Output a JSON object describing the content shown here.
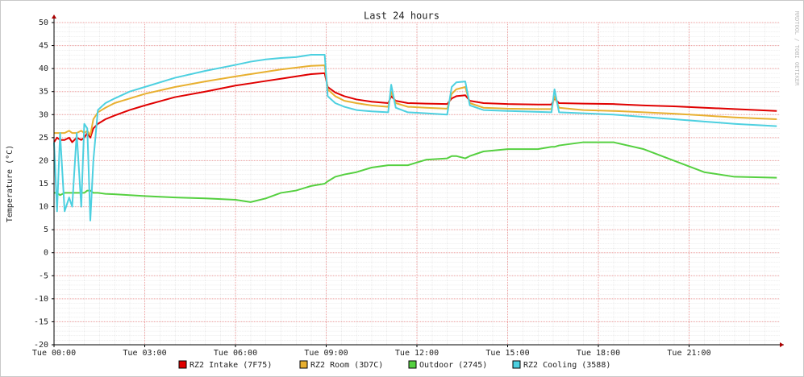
{
  "chart_data": {
    "type": "line",
    "title": "Last 24 hours",
    "y_label": "Temperature (°C)",
    "watermark": "RRDTOOL / TOBI OETIKER",
    "xlim": [
      0,
      24
    ],
    "xticks": [
      {
        "value": 0,
        "label": "Tue 00:00"
      },
      {
        "value": 3,
        "label": "Tue 03:00"
      },
      {
        "value": 6,
        "label": "Tue 06:00"
      },
      {
        "value": 9,
        "label": "Tue 09:00"
      },
      {
        "value": 12,
        "label": "Tue 12:00"
      },
      {
        "value": 15,
        "label": "Tue 15:00"
      },
      {
        "value": 18,
        "label": "Tue 18:00"
      },
      {
        "value": 21,
        "label": "Tue 21:00"
      }
    ],
    "ylim": [
      -20,
      50
    ],
    "yticks": [
      -20,
      -15,
      -10,
      -5,
      0,
      5,
      10,
      15,
      20,
      25,
      30,
      35,
      40,
      45,
      50
    ],
    "grid": true,
    "x": [
      0,
      0.1,
      0.2,
      0.35,
      0.5,
      0.6,
      0.75,
      0.9,
      1.0,
      1.1,
      1.2,
      1.3,
      1.45,
      1.7,
      2.0,
      2.5,
      3,
      4,
      5,
      6,
      6.5,
      7,
      7.5,
      8,
      8.5,
      8.95,
      9.05,
      9.3,
      9.6,
      10,
      10.5,
      11.05,
      11.15,
      11.3,
      11.7,
      12.3,
      13.0,
      13.15,
      13.3,
      13.6,
      13.75,
      14.2,
      15,
      16,
      16.45,
      16.55,
      16.7,
      17.5,
      18.5,
      19.5,
      20.5,
      21.5,
      22.5,
      23.9
    ],
    "series": [
      {
        "name": "RZ2 Intake (7F75)",
        "color": "#e00000",
        "values": [
          24,
          25,
          24.5,
          24.5,
          25,
          24,
          25,
          24.5,
          25,
          26,
          25,
          27,
          28,
          29,
          29.8,
          31,
          32,
          33.8,
          35,
          36.3,
          36.8,
          37.3,
          37.8,
          38.3,
          38.8,
          39,
          36,
          34.8,
          34,
          33.3,
          32.8,
          32.5,
          34,
          33,
          32.5,
          32.4,
          32.3,
          33.5,
          34,
          34.2,
          33,
          32.5,
          32.3,
          32.2,
          32.2,
          33.5,
          32.5,
          32.4,
          32.3,
          32,
          31.8,
          31.5,
          31.2,
          30.8
        ]
      },
      {
        "name": "RZ2 Room (3D7C)",
        "color": "#e8b030",
        "values": [
          26,
          26,
          26,
          26,
          26.5,
          26,
          26,
          26.5,
          26,
          26.5,
          25.5,
          29,
          30.5,
          31.5,
          32.5,
          33.5,
          34.5,
          36,
          37.2,
          38.3,
          38.8,
          39.3,
          39.8,
          40.2,
          40.6,
          40.7,
          35.5,
          34,
          33,
          32.5,
          32,
          31.7,
          35,
          32.5,
          31.7,
          31.5,
          31.3,
          34.5,
          35.5,
          36,
          32.5,
          31.5,
          31.3,
          31.2,
          31.2,
          34,
          31.5,
          31,
          30.8,
          30.5,
          30.2,
          29.8,
          29.4,
          29
        ]
      },
      {
        "name": "Outdoor (2745)",
        "color": "#55d040",
        "values": [
          13,
          13,
          12.5,
          13,
          13,
          13,
          13,
          13,
          13,
          13.5,
          13.5,
          13,
          13,
          12.8,
          12.7,
          12.5,
          12.3,
          12,
          11.8,
          11.5,
          11,
          11.8,
          13,
          13.5,
          14.5,
          15,
          15.5,
          16.5,
          17,
          17.5,
          18.5,
          19,
          19,
          19,
          19,
          20.2,
          20.5,
          21,
          21,
          20.5,
          21,
          22,
          22.5,
          22.5,
          23,
          23,
          23.3,
          24,
          24,
          22.5,
          20,
          17.5,
          16.5,
          16.3
        ]
      },
      {
        "name": "RZ2 Cooling (3588)",
        "color": "#4dd0e0",
        "values": [
          24,
          9,
          26,
          9,
          12,
          10,
          26,
          10,
          28,
          27,
          7,
          20,
          31,
          32.5,
          33.5,
          35,
          36,
          38,
          39.5,
          40.8,
          41.5,
          42,
          42.3,
          42.5,
          43,
          43,
          34,
          32.5,
          31.7,
          31,
          30.7,
          30.5,
          36.5,
          31.5,
          30.5,
          30.3,
          30,
          36,
          37,
          37.2,
          32,
          31,
          30.8,
          30.6,
          30.5,
          35.5,
          30.5,
          30.3,
          30,
          29.5,
          29,
          28.5,
          28,
          27.5
        ]
      }
    ]
  }
}
